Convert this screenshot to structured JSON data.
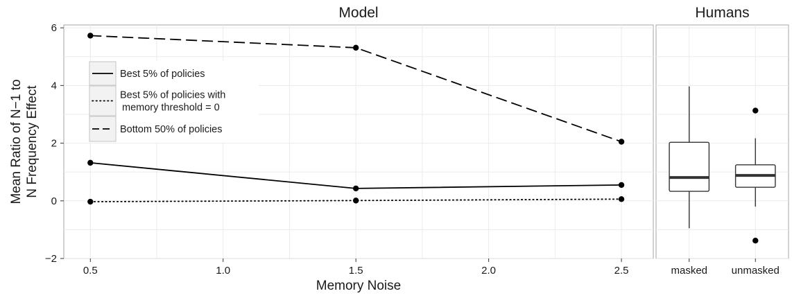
{
  "chart_data": [
    {
      "panel": "Model",
      "type": "line",
      "title": "Model",
      "xlabel": "Memory Noise",
      "ylabel_lines": [
        "Mean Ratio of N−1 to",
        "N Frequency Effect"
      ],
      "xlim": [
        0.4,
        2.62
      ],
      "ylim": [
        -2,
        6.1
      ],
      "xticks": [
        0.5,
        1.0,
        1.5,
        2.0,
        2.5
      ],
      "xtick_labels": [
        "0.5",
        "1.0",
        "1.5",
        "2.0",
        "2.5"
      ],
      "yticks": [
        -2,
        0,
        2,
        4,
        6
      ],
      "ytick_labels": [
        "−2",
        "0",
        "2",
        "4",
        "6"
      ],
      "grid": true,
      "legend_position": "top-left",
      "series": [
        {
          "name": "Best 5% of policies",
          "dash": "solid",
          "x": [
            0.5,
            1.5,
            2.5
          ],
          "y": [
            1.32,
            0.43,
            0.55
          ]
        },
        {
          "name_lines": [
            "Best 5% of policies with",
            "memory threshold = 0"
          ],
          "dash": "dotted",
          "x": [
            0.5,
            1.5,
            2.5
          ],
          "y": [
            -0.03,
            0.01,
            0.06
          ]
        },
        {
          "name": "Bottom 50% of policies",
          "dash": "dashed",
          "x": [
            0.5,
            1.5,
            2.5
          ],
          "y": [
            5.73,
            5.31,
            2.05
          ]
        }
      ]
    },
    {
      "panel": "Humans",
      "type": "box",
      "title": "Humans",
      "categories": [
        "masked",
        "unmasked"
      ],
      "ylim": [
        -2,
        6.1
      ],
      "boxes": [
        {
          "category": "masked",
          "whisker_low": -0.95,
          "q1": 0.33,
          "median": 0.81,
          "q3": 2.03,
          "whisker_high": 3.97,
          "outliers": []
        },
        {
          "category": "unmasked",
          "whisker_low": -0.2,
          "q1": 0.47,
          "median": 0.88,
          "q3": 1.25,
          "whisker_high": 2.17,
          "outliers": [
            3.13,
            -1.38
          ]
        }
      ]
    }
  ]
}
